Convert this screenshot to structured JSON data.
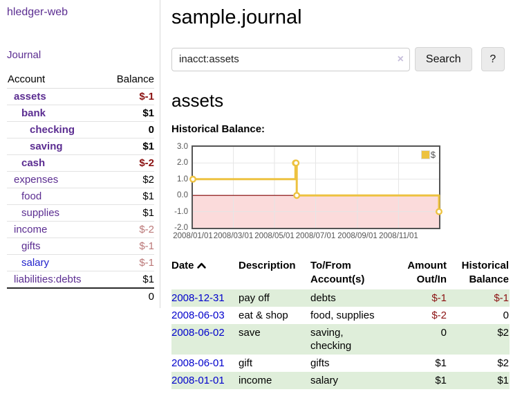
{
  "app": {
    "brand": "hledger-web"
  },
  "sidebar": {
    "journal_label": "Journal",
    "table": {
      "account_header": "Account",
      "balance_header": "Balance",
      "rows": [
        {
          "account": "assets",
          "balance": "$-1",
          "level": 1,
          "bold": true,
          "tone": "neg",
          "link": "purple"
        },
        {
          "account": "bank",
          "balance": "$1",
          "level": 2,
          "bold": true,
          "tone": "",
          "link": "purple"
        },
        {
          "account": "checking",
          "balance": "0",
          "level": 3,
          "bold": true,
          "tone": "",
          "link": "purple"
        },
        {
          "account": "saving",
          "balance": "$1",
          "level": 3,
          "bold": true,
          "tone": "",
          "link": "purple"
        },
        {
          "account": "cash",
          "balance": "$-2",
          "level": 2,
          "bold": true,
          "tone": "neg",
          "link": "purple"
        },
        {
          "account": "expenses",
          "balance": "$2",
          "level": 1,
          "bold": false,
          "tone": "",
          "link": "purple"
        },
        {
          "account": "food",
          "balance": "$1",
          "level": 2,
          "bold": false,
          "tone": "",
          "link": "purple"
        },
        {
          "account": "supplies",
          "balance": "$1",
          "level": 2,
          "bold": false,
          "tone": "",
          "link": "purple"
        },
        {
          "account": "income",
          "balance": "$-2",
          "level": 1,
          "bold": false,
          "tone": "rosy",
          "link": "purple"
        },
        {
          "account": "gifts",
          "balance": "$-1",
          "level": 2,
          "bold": false,
          "tone": "rosy",
          "link": "purple"
        },
        {
          "account": "salary",
          "balance": "$-1",
          "level": 2,
          "bold": false,
          "tone": "rosy",
          "link": "blue"
        },
        {
          "account": "liabilities:debts",
          "balance": "$1",
          "level": 1,
          "bold": false,
          "tone": "",
          "link": "purple"
        }
      ],
      "total": "0"
    }
  },
  "main": {
    "title": "sample.journal",
    "search": {
      "value": "inacct:assets",
      "clear_icon": "×",
      "button_label": "Search",
      "help_label": "?"
    },
    "account_heading": "assets",
    "chart_label": "Historical Balance:",
    "register": {
      "headers": {
        "date": "Date",
        "description": "Description",
        "accounts": "To/From Account(s)",
        "amount": "Amount Out/In",
        "balance": "Historical Balance"
      },
      "rows": [
        {
          "date": "2008-12-31",
          "description": "pay off",
          "accounts": "debts",
          "amount": "$-1",
          "amount_tone": "neg",
          "balance": "$-1",
          "balance_tone": "neg",
          "highlight": true
        },
        {
          "date": "2008-06-03",
          "description": "eat & shop",
          "accounts": "food, supplies",
          "amount": "$-2",
          "amount_tone": "neg",
          "balance": "0",
          "balance_tone": "",
          "highlight": false
        },
        {
          "date": "2008-06-02",
          "description": "save",
          "accounts": "saving,\nchecking",
          "amount": "0",
          "amount_tone": "",
          "balance": "$2",
          "balance_tone": "",
          "highlight": true
        },
        {
          "date": "2008-06-01",
          "description": "gift",
          "accounts": "gifts",
          "amount": "$1",
          "amount_tone": "",
          "balance": "$2",
          "balance_tone": "",
          "highlight": false
        },
        {
          "date": "2008-01-01",
          "description": "income",
          "accounts": "salary",
          "amount": "$1",
          "amount_tone": "",
          "balance": "$1",
          "balance_tone": "",
          "highlight": true
        }
      ]
    }
  },
  "chart_data": {
    "type": "line",
    "step": true,
    "title": "Historical Balance",
    "series": [
      {
        "name": "$",
        "color": "#edc240",
        "points": [
          [
            "2008-01-01",
            1
          ],
          [
            "2008-06-01",
            2
          ],
          [
            "2008-06-02",
            2
          ],
          [
            "2008-06-03",
            0
          ],
          [
            "2008-12-31",
            -1
          ]
        ]
      }
    ],
    "x_range": [
      "2008-01-01",
      "2008-12-31"
    ],
    "ylim": [
      -2,
      3
    ],
    "y_ticks": [
      "3.0",
      "2.0",
      "1.0",
      "0.0",
      "-1.0",
      "-2.0"
    ],
    "y_tick_values": [
      3,
      2,
      1,
      0,
      -1,
      -2
    ],
    "x_ticks": [
      "2008/01/01",
      "2008/03/01",
      "2008/05/01",
      "2008/07/01",
      "2008/09/01",
      "2008/11/01"
    ],
    "grid": true,
    "legend_position": "top-right",
    "legend_label": "$",
    "colors": {
      "line": "#edc240",
      "marker_fill": "#ffffff",
      "negative_region": "#fbdbdb",
      "zero_line": "#800000",
      "grid": "#e6e6e6",
      "border": "#545454",
      "tick_text": "#545454"
    }
  }
}
